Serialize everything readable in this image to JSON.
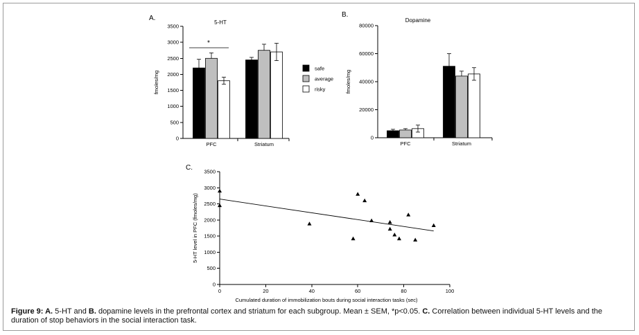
{
  "caption": {
    "prefix": "Figure 9: ",
    "seg1_bold": "A.",
    "seg1": " 5-HT and ",
    "seg2_bold": "B.",
    "seg2": " dopamine levels in the prefrontal cortex and striatum for each subgroup. Mean ± SEM, *p<0.05.  ",
    "seg3_bold": "C.",
    "seg3": " Correlation between individual 5-HT levels and the duration of stop behaviors in the social interaction task."
  },
  "legend": [
    "safe",
    "average",
    "risky"
  ],
  "colors": {
    "safe": "#000000",
    "average": "#bfbfbf",
    "risky": "#ffffff"
  },
  "chart_data": [
    {
      "panel": "A.",
      "type": "bar",
      "title": "5-HT",
      "ylabel": "fmoles/mg",
      "ylim": [
        0,
        3500
      ],
      "yticks": [
        0,
        500,
        1000,
        1500,
        2000,
        2500,
        3000,
        3500
      ],
      "categories": [
        "PFC",
        "Striatum"
      ],
      "series": [
        {
          "name": "safe",
          "values": [
            2200,
            2450
          ],
          "errors": [
            270,
            80
          ]
        },
        {
          "name": "average",
          "values": [
            2500,
            2750
          ],
          "errors": [
            170,
            190
          ]
        },
        {
          "name": "risky",
          "values": [
            1800,
            2700
          ],
          "errors": [
            110,
            270
          ]
        }
      ],
      "annotation": "*"
    },
    {
      "panel": "B.",
      "type": "bar",
      "title": "Dopamine",
      "ylabel": "fmoles/mg",
      "ylim": [
        0,
        80000
      ],
      "yticks": [
        0,
        20000,
        40000,
        60000,
        80000
      ],
      "categories": [
        "PFC",
        "Striatum"
      ],
      "series": [
        {
          "name": "safe",
          "values": [
            5000,
            51000
          ],
          "errors": [
            1000,
            9000
          ]
        },
        {
          "name": "average",
          "values": [
            5500,
            44000
          ],
          "errors": [
            1000,
            3500
          ]
        },
        {
          "name": "risky",
          "values": [
            6500,
            45500
          ],
          "errors": [
            2500,
            4500
          ]
        }
      ]
    },
    {
      "panel": "C.",
      "type": "scatter",
      "ylabel": "5-HT level in PFC (fmoles/mg)",
      "xlabel": "Cumulated duration of immobilization bouts during social interaction tasks (sec)",
      "xlim": [
        0,
        100
      ],
      "ylim": [
        0,
        3500
      ],
      "xticks": [
        0,
        20,
        40,
        60,
        80,
        100
      ],
      "yticks": [
        0,
        500,
        1000,
        1500,
        2000,
        2500,
        3000,
        3500
      ],
      "points": [
        {
          "x": 0,
          "y": 2900
        },
        {
          "x": 0,
          "y": 2450
        },
        {
          "x": 39,
          "y": 1880
        },
        {
          "x": 58,
          "y": 1420
        },
        {
          "x": 60,
          "y": 2800
        },
        {
          "x": 63,
          "y": 2600
        },
        {
          "x": 66,
          "y": 1980
        },
        {
          "x": 74,
          "y": 1930
        },
        {
          "x": 74,
          "y": 1720
        },
        {
          "x": 76,
          "y": 1540
        },
        {
          "x": 78,
          "y": 1420
        },
        {
          "x": 82,
          "y": 2160
        },
        {
          "x": 85,
          "y": 1380
        },
        {
          "x": 93,
          "y": 1830
        }
      ],
      "trendline": {
        "x": [
          0,
          93
        ],
        "y": [
          2650,
          1660
        ]
      }
    }
  ]
}
